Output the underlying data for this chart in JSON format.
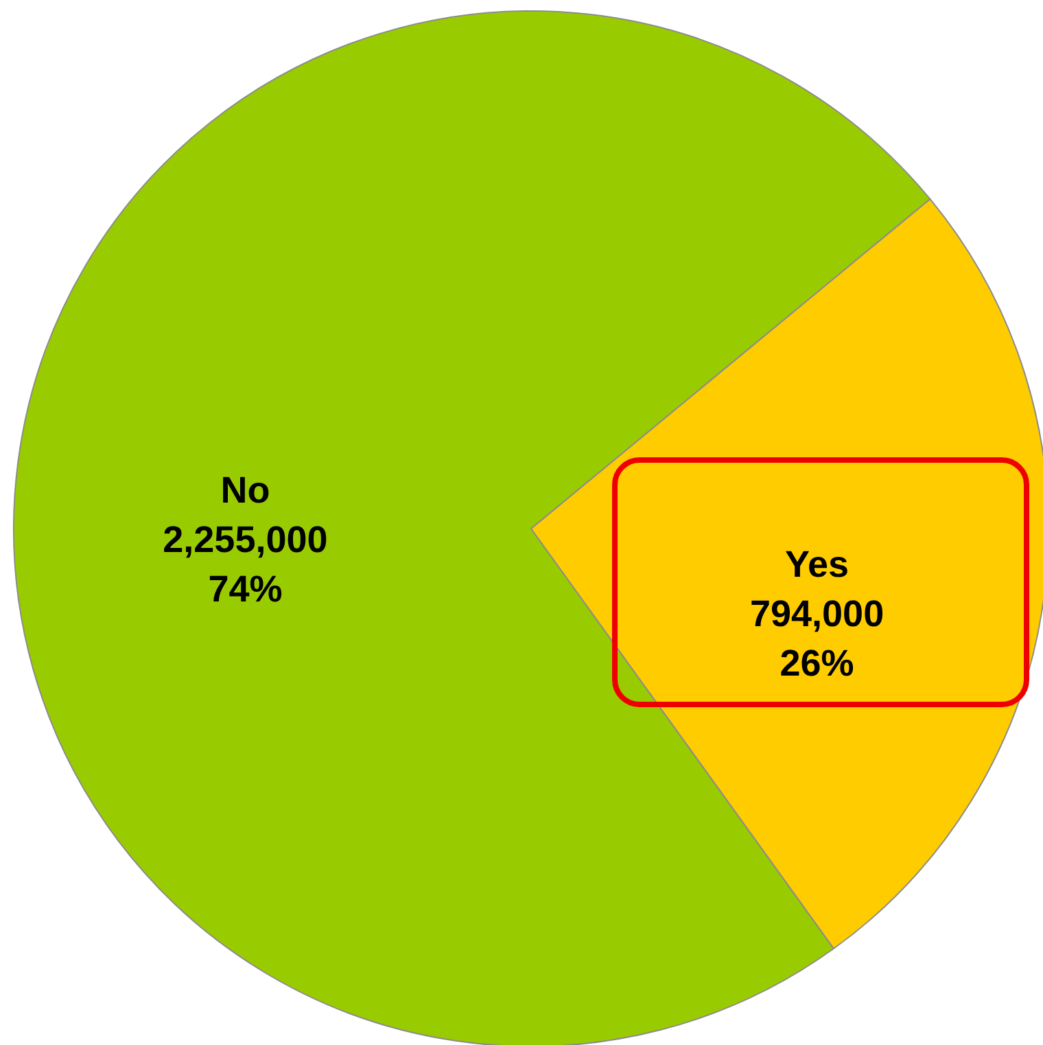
{
  "chart_data": {
    "type": "pie",
    "categories": [
      "No",
      "Yes"
    ],
    "values": [
      2255000,
      794000
    ],
    "value_labels": [
      "2,255,000\n74%",
      "794,000\n26%"
    ],
    "colors": [
      "#99cc00",
      "#ffcc00"
    ]
  }
}
